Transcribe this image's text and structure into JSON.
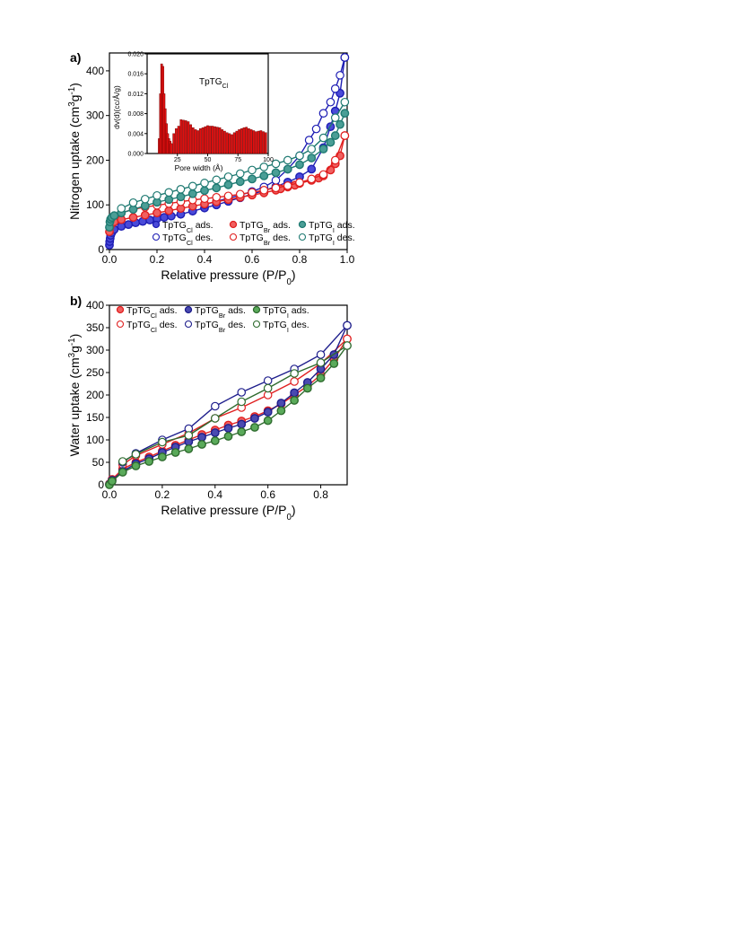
{
  "chart_data": [
    {
      "panel_label": "a)",
      "type": "line",
      "xlabel": "Relative pressure (P/P",
      "xlabel_sub": "0",
      "xlabel_end": ")",
      "ylabel_parts": [
        "Nitrogen uptake (cm",
        "3",
        "g",
        "-1",
        ")"
      ],
      "xlim": [
        0,
        1.0
      ],
      "ylim": [
        0,
        440
      ],
      "xticks": [
        "0.0",
        "0.2",
        "0.4",
        "0.6",
        "0.8",
        "1.0"
      ],
      "yticks": [
        "0",
        "100",
        "200",
        "300",
        "400"
      ],
      "legend_location": "bottom",
      "series": [
        {
          "name": "TpTG",
          "sub": "Cl",
          "suffix": " ads.",
          "marker": "filled",
          "color": "#1e1eb4",
          "fill": "#4a4ad8",
          "x": [
            0.0,
            0.001,
            0.003,
            0.005,
            0.01,
            0.02,
            0.05,
            0.08,
            0.11,
            0.14,
            0.17,
            0.2,
            0.23,
            0.26,
            0.3,
            0.35,
            0.4,
            0.45,
            0.5,
            0.55,
            0.6,
            0.65,
            0.7,
            0.75,
            0.8,
            0.85,
            0.9,
            0.93,
            0.95,
            0.97,
            0.99
          ],
          "y": [
            10,
            18,
            25,
            32,
            38,
            45,
            52,
            56,
            60,
            63,
            66,
            69,
            72,
            75,
            79,
            86,
            93,
            100,
            108,
            116,
            124,
            132,
            141,
            151,
            163,
            180,
            228,
            275,
            310,
            350,
            430
          ]
        },
        {
          "name": "TpTG",
          "sub": "Cl",
          "suffix": " des.",
          "marker": "open",
          "color": "#1e1eb4",
          "x": [
            0.99,
            0.97,
            0.95,
            0.93,
            0.9,
            0.87,
            0.84,
            0.8,
            0.75,
            0.7,
            0.65,
            0.6,
            0.55,
            0.5,
            0.45,
            0.4
          ],
          "y": [
            430,
            390,
            360,
            330,
            305,
            270,
            245,
            210,
            180,
            155,
            140,
            130,
            122,
            115,
            108,
            100
          ]
        },
        {
          "name": "TpTG",
          "sub": "Br",
          "suffix": " ads.",
          "marker": "filled",
          "color": "#e02020",
          "fill": "#f06060",
          "x": [
            0.0,
            0.002,
            0.005,
            0.01,
            0.02,
            0.05,
            0.1,
            0.15,
            0.2,
            0.25,
            0.3,
            0.35,
            0.4,
            0.45,
            0.5,
            0.55,
            0.6,
            0.65,
            0.7,
            0.72,
            0.75,
            0.78,
            0.8,
            0.85,
            0.88,
            0.9,
            0.93,
            0.95,
            0.97,
            0.99
          ],
          "y": [
            40,
            50,
            55,
            58,
            62,
            67,
            72,
            77,
            82,
            87,
            92,
            97,
            102,
            107,
            112,
            117,
            122,
            127,
            133,
            136,
            140,
            144,
            148,
            155,
            160,
            165,
            178,
            192,
            210,
            255
          ]
        },
        {
          "name": "TpTG",
          "sub": "Br",
          "suffix": " des.",
          "marker": "open",
          "color": "#e02020",
          "x": [
            0.99,
            0.95,
            0.9,
            0.85,
            0.8,
            0.75,
            0.7,
            0.65,
            0.6,
            0.55,
            0.5,
            0.45,
            0.4,
            0.35,
            0.3,
            0.25,
            0.2,
            0.15,
            0.1,
            0.05
          ],
          "y": [
            255,
            200,
            168,
            158,
            150,
            143,
            138,
            133,
            128,
            124,
            120,
            117,
            114,
            111,
            107,
            103,
            99,
            95,
            90,
            82
          ]
        },
        {
          "name": "TpTG",
          "sub": "I",
          "suffix": " ads.",
          "marker": "filled",
          "color": "#1f7a72",
          "fill": "#4a9e96",
          "x": [
            0.0,
            0.002,
            0.005,
            0.01,
            0.02,
            0.05,
            0.1,
            0.15,
            0.2,
            0.25,
            0.3,
            0.35,
            0.4,
            0.45,
            0.5,
            0.55,
            0.6,
            0.65,
            0.7,
            0.75,
            0.8,
            0.85,
            0.9,
            0.93,
            0.95,
            0.97,
            0.99
          ],
          "y": [
            50,
            62,
            68,
            72,
            76,
            82,
            90,
            98,
            106,
            112,
            118,
            125,
            132,
            138,
            145,
            152,
            158,
            165,
            172,
            180,
            190,
            205,
            225,
            240,
            255,
            280,
            305
          ]
        },
        {
          "name": "TpTG",
          "sub": "I",
          "suffix": " des.",
          "marker": "open",
          "color": "#1f7a72",
          "x": [
            0.99,
            0.95,
            0.9,
            0.85,
            0.8,
            0.75,
            0.7,
            0.65,
            0.6,
            0.55,
            0.5,
            0.45,
            0.4,
            0.35,
            0.3,
            0.25,
            0.2,
            0.15,
            0.1,
            0.05
          ],
          "y": [
            330,
            295,
            250,
            225,
            210,
            200,
            192,
            185,
            178,
            170,
            163,
            156,
            149,
            142,
            135,
            128,
            121,
            113,
            105,
            92
          ]
        }
      ],
      "inset": {
        "type": "bar",
        "title": "TpTG",
        "title_sub": "Cl",
        "xlabel": "Pore width (Å)",
        "ylabel": "dv(d)(cc/Å/g)",
        "xlim": [
          0,
          100
        ],
        "ylim": [
          0,
          0.02
        ],
        "xticks": [
          "25",
          "50",
          "75",
          "100"
        ],
        "yticks": [
          "0.000",
          "0.004",
          "0.008",
          "0.012",
          "0.016",
          "0.020"
        ],
        "bar_color": "#e01010",
        "x": [
          10,
          11,
          12,
          13,
          14,
          15,
          16,
          17,
          18,
          19,
          20,
          22,
          24,
          26,
          28,
          30,
          32,
          34,
          36,
          38,
          40,
          42,
          44,
          46,
          48,
          50,
          52,
          54,
          56,
          58,
          60,
          62,
          64,
          66,
          68,
          70,
          72,
          74,
          76,
          78,
          80,
          82,
          84,
          86,
          88,
          90,
          92,
          94,
          96,
          98
        ],
        "y": [
          0.003,
          0.012,
          0.018,
          0.0175,
          0.012,
          0.009,
          0.006,
          0.004,
          0.003,
          0.0025,
          0.002,
          0.004,
          0.005,
          0.0055,
          0.0068,
          0.0067,
          0.0066,
          0.0064,
          0.0058,
          0.0052,
          0.0048,
          0.0046,
          0.005,
          0.0052,
          0.0054,
          0.0056,
          0.0055,
          0.0055,
          0.0054,
          0.0053,
          0.0052,
          0.0048,
          0.0045,
          0.0042,
          0.004,
          0.0038,
          0.0042,
          0.0045,
          0.0048,
          0.005,
          0.0052,
          0.0053,
          0.005,
          0.0048,
          0.0046,
          0.0044,
          0.0045,
          0.0046,
          0.0044,
          0.0042
        ]
      }
    },
    {
      "panel_label": "b)",
      "type": "line",
      "xlabel": "Relative pressure (P/P",
      "xlabel_sub": "0",
      "xlabel_end": ")",
      "ylabel_parts": [
        "Water uptake (cm",
        "3",
        "g",
        "-1",
        ")"
      ],
      "xlim": [
        0,
        0.9
      ],
      "ylim": [
        0,
        400
      ],
      "xticks": [
        "0.0",
        "0.2",
        "0.4",
        "0.6",
        "0.8"
      ],
      "yticks": [
        "0",
        "50",
        "100",
        "150",
        "200",
        "250",
        "300",
        "350",
        "400"
      ],
      "legend_location": "top-left",
      "series": [
        {
          "name": "TpTG",
          "sub": "Cl",
          "suffix": " ads.",
          "marker": "filled",
          "color": "#e02020",
          "fill": "#f06060",
          "x": [
            0.0,
            0.01,
            0.05,
            0.1,
            0.15,
            0.2,
            0.25,
            0.3,
            0.35,
            0.4,
            0.45,
            0.5,
            0.55,
            0.6,
            0.65,
            0.7,
            0.75,
            0.8,
            0.85,
            0.9
          ],
          "y": [
            2,
            12,
            35,
            50,
            62,
            75,
            88,
            100,
            112,
            122,
            133,
            142,
            152,
            165,
            180,
            200,
            220,
            245,
            280,
            325
          ]
        },
        {
          "name": "TpTG",
          "sub": "Cl",
          "suffix": " des.",
          "marker": "open",
          "color": "#e02020",
          "x": [
            0.9,
            0.8,
            0.7,
            0.6,
            0.5,
            0.4,
            0.3,
            0.2,
            0.1,
            0.05
          ],
          "y": [
            325,
            270,
            230,
            200,
            172,
            148,
            115,
            90,
            65,
            45
          ]
        },
        {
          "name": "TpTG",
          "sub": "Br",
          "suffix": " ads.",
          "marker": "filled",
          "color": "#1e1e8c",
          "fill": "#4a4ab0",
          "x": [
            0.0,
            0.01,
            0.05,
            0.1,
            0.15,
            0.2,
            0.25,
            0.3,
            0.35,
            0.4,
            0.45,
            0.5,
            0.55,
            0.6,
            0.65,
            0.7,
            0.75,
            0.8,
            0.85,
            0.9
          ],
          "y": [
            1,
            10,
            30,
            47,
            58,
            72,
            84,
            96,
            106,
            116,
            126,
            135,
            148,
            162,
            182,
            205,
            228,
            258,
            290,
            355
          ]
        },
        {
          "name": "TpTG",
          "sub": "Br",
          "suffix": " des.",
          "marker": "open",
          "color": "#1e1e8c",
          "x": [
            0.9,
            0.8,
            0.7,
            0.6,
            0.5,
            0.4,
            0.3,
            0.2,
            0.1,
            0.05
          ],
          "y": [
            355,
            290,
            258,
            232,
            206,
            175,
            125,
            100,
            70,
            50
          ]
        },
        {
          "name": "TpTG",
          "sub": "I",
          "suffix": " ads.",
          "marker": "filled",
          "color": "#2e6b2e",
          "fill": "#5aaa5a",
          "x": [
            0.0,
            0.01,
            0.05,
            0.1,
            0.15,
            0.2,
            0.25,
            0.3,
            0.35,
            0.4,
            0.45,
            0.5,
            0.55,
            0.6,
            0.65,
            0.7,
            0.75,
            0.8,
            0.85,
            0.9
          ],
          "y": [
            0,
            8,
            28,
            42,
            52,
            62,
            72,
            80,
            90,
            98,
            108,
            118,
            128,
            143,
            165,
            188,
            215,
            238,
            270,
            310
          ]
        },
        {
          "name": "TpTG",
          "sub": "I",
          "suffix": " des.",
          "marker": "open",
          "color": "#2e6b2e",
          "x": [
            0.9,
            0.8,
            0.7,
            0.6,
            0.5,
            0.4,
            0.3,
            0.2,
            0.1,
            0.05
          ],
          "y": [
            310,
            272,
            248,
            215,
            185,
            148,
            110,
            95,
            68,
            52
          ]
        }
      ]
    }
  ]
}
